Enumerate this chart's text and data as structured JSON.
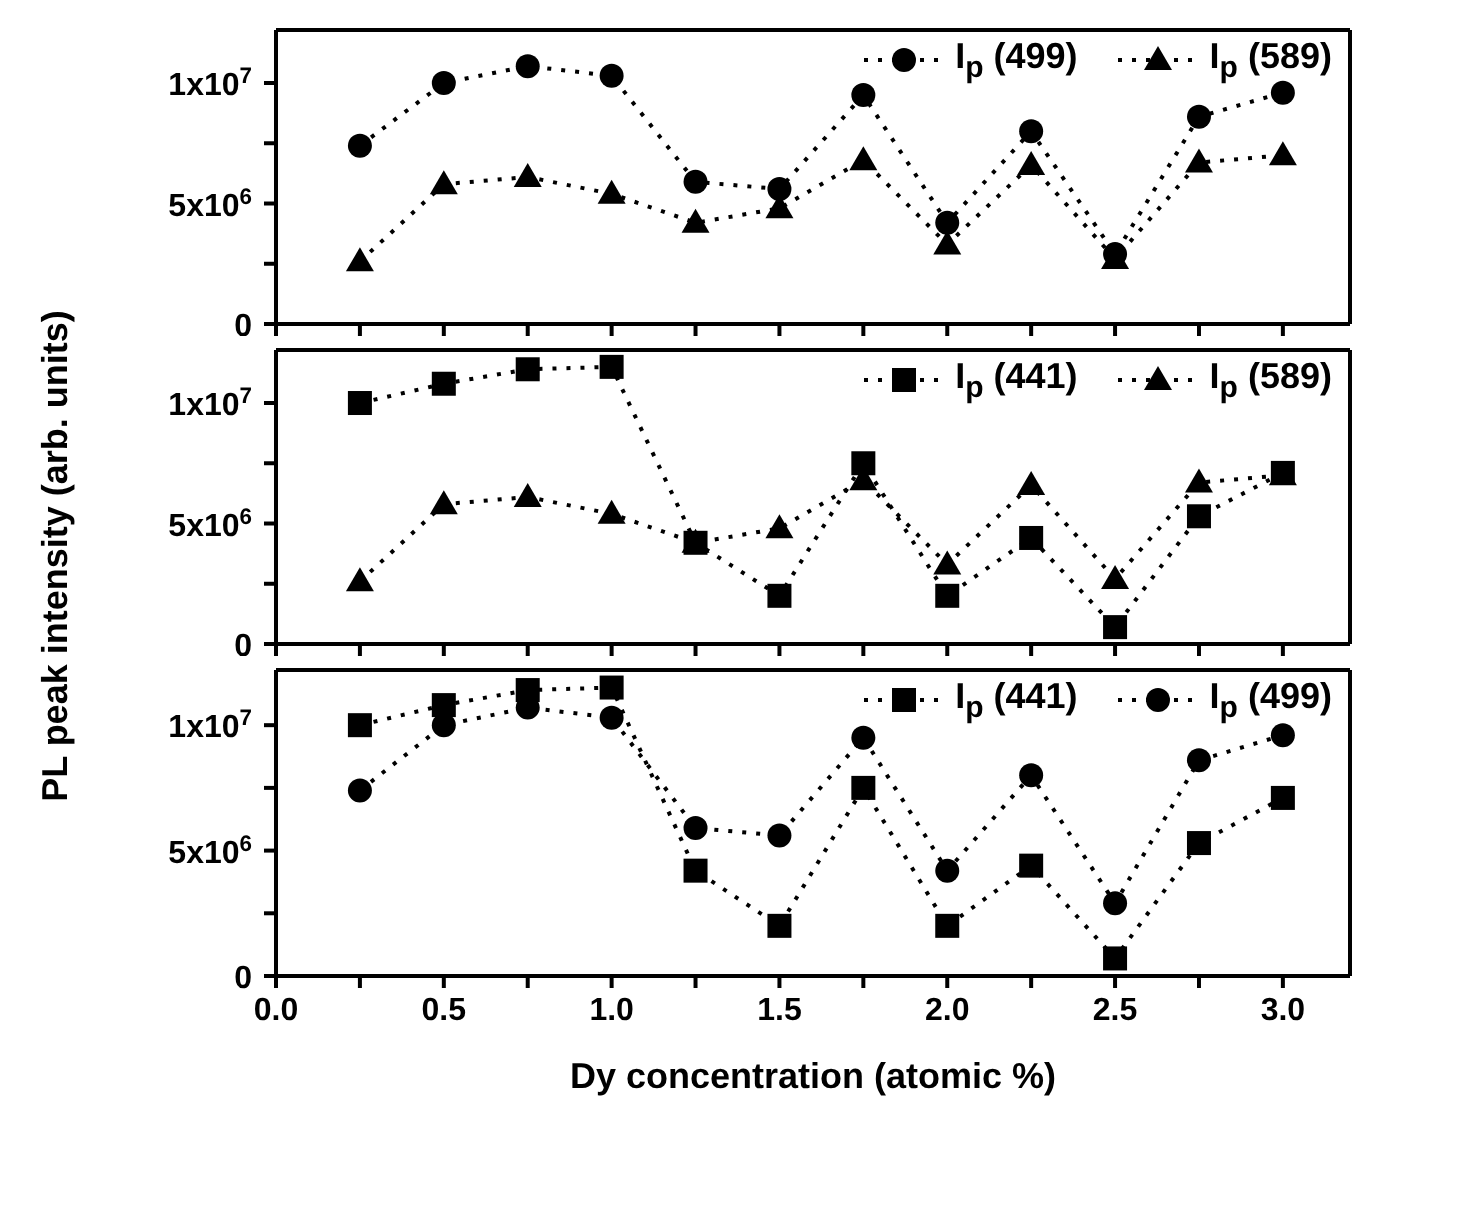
{
  "chart_data": [
    {
      "type": "line",
      "x": [
        0.25,
        0.5,
        0.75,
        1.0,
        1.25,
        1.5,
        1.75,
        2.0,
        2.25,
        2.5,
        2.75,
        3.0
      ],
      "series": [
        {
          "name": "I$_{p}$ (499)",
          "color": "#000000",
          "marker": "circle",
          "values": [
            7400000,
            10000000,
            10700000,
            10300000,
            5900000,
            5600000,
            9500000,
            4200000,
            8000000,
            2900000,
            8600000,
            9600000
          ]
        },
        {
          "name": "I$_{p}$ (589)",
          "color": "#000000",
          "marker": "triangle",
          "values": [
            2600000,
            5800000,
            6100000,
            5400000,
            4200000,
            4800000,
            6800000,
            3300000,
            6600000,
            2700000,
            6700000,
            7000000
          ]
        }
      ],
      "xlim": [
        0,
        3.2
      ],
      "ylim": [
        0,
        12200000
      ],
      "xticks": [
        0,
        0.5,
        1,
        1.5,
        2,
        2.5,
        3,
        {
          "value": 0.25,
          "label": null
        },
        {
          "value": 0.75,
          "label": null
        },
        {
          "value": 1.25,
          "label": null
        },
        {
          "value": 1.75,
          "label": null
        },
        {
          "value": 2.25,
          "label": null
        },
        {
          "value": 2.75,
          "label": null
        }
      ],
      "yticks": [
        {
          "value": 0,
          "label": "0"
        },
        {
          "value": 5000000,
          "label": "5x10$^{6}$"
        },
        {
          "value": 10000000,
          "label": "1x10$^{7}$"
        },
        {
          "value": 2500000,
          "label": null
        },
        {
          "value": 7500000,
          "label": null
        }
      ],
      "tick_labels": "y",
      "grid": false,
      "legend": "top right",
      "line_style": "dotted"
    },
    {
      "type": "line",
      "x": [
        0.25,
        0.5,
        0.75,
        1.0,
        1.25,
        1.5,
        1.75,
        2.0,
        2.25,
        2.5,
        2.75,
        3.0
      ],
      "ylabel": "PL peak intensity (arb. units)",
      "series": [
        {
          "name": "I$_{p}$ (441)",
          "color": "#000000",
          "marker": "square",
          "values": [
            10000000,
            10800000,
            11400000,
            11500000,
            4200000,
            2000000,
            7500000,
            2000000,
            4400000,
            700000,
            5300000,
            7100000
          ]
        },
        {
          "name": "I$_{p}$ (589)",
          "color": "#000000",
          "marker": "triangle",
          "values": [
            2600000,
            5800000,
            6100000,
            5400000,
            4200000,
            4800000,
            6800000,
            3300000,
            6600000,
            2700000,
            6700000,
            7000000
          ]
        }
      ],
      "xlim": [
        0,
        3.2
      ],
      "ylim": [
        0,
        12200000
      ],
      "xticks": [
        0,
        0.5,
        1,
        1.5,
        2,
        2.5,
        3,
        {
          "value": 0.25,
          "label": null
        },
        {
          "value": 0.75,
          "label": null
        },
        {
          "value": 1.25,
          "label": null
        },
        {
          "value": 1.75,
          "label": null
        },
        {
          "value": 2.25,
          "label": null
        },
        {
          "value": 2.75,
          "label": null
        }
      ],
      "yticks": [
        {
          "value": 0,
          "label": "0"
        },
        {
          "value": 5000000,
          "label": "5x10$^{6}$"
        },
        {
          "value": 10000000,
          "label": "1x10$^{7}$"
        },
        {
          "value": 2500000,
          "label": null
        },
        {
          "value": 7500000,
          "label": null
        }
      ],
      "tick_labels": "y",
      "grid": false,
      "legend": "top right",
      "line_style": "dotted"
    },
    {
      "type": "line",
      "x": [
        0.25,
        0.5,
        0.75,
        1.0,
        1.25,
        1.5,
        1.75,
        2.0,
        2.25,
        2.5,
        2.75,
        3.0
      ],
      "xlabel": "Dy concentration (atomic %)",
      "xticks": [
        {
          "value": 0,
          "label": "0.0"
        },
        {
          "value": 0.5,
          "label": "0.5"
        },
        {
          "value": 1,
          "label": "1.0"
        },
        {
          "value": 1.5,
          "label": "1.5"
        },
        {
          "value": 2,
          "label": "2.0"
        },
        {
          "value": 2.5,
          "label": "2.5"
        },
        {
          "value": 3,
          "label": "3.0"
        },
        {
          "value": 0.25,
          "label": null
        },
        {
          "value": 0.75,
          "label": null
        },
        {
          "value": 1.25,
          "label": null
        },
        {
          "value": 1.75,
          "label": null
        },
        {
          "value": 2.25,
          "label": null
        },
        {
          "value": 2.75,
          "label": null
        }
      ],
      "series": [
        {
          "name": "I$_{p}$ (441)",
          "color": "#000000",
          "marker": "square",
          "values": [
            10000000,
            10800000,
            11400000,
            11500000,
            4200000,
            2000000,
            7500000,
            2000000,
            4400000,
            700000,
            5300000,
            7100000
          ]
        },
        {
          "name": "I$_{p}$ (499)",
          "color": "#000000",
          "marker": "circle",
          "values": [
            7400000,
            10000000,
            10700000,
            10300000,
            5900000,
            5600000,
            9500000,
            4200000,
            8000000,
            2900000,
            8600000,
            9600000
          ]
        }
      ],
      "xlim": [
        0,
        3.2
      ],
      "ylim": [
        0,
        12200000
      ],
      "yticks": [
        {
          "value": 0,
          "label": "0"
        },
        {
          "value": 5000000,
          "label": "5x10$^{6}$"
        },
        {
          "value": 10000000,
          "label": "1x10$^{7}$"
        },
        {
          "value": 2500000,
          "label": null
        },
        {
          "value": 7500000,
          "label": null
        }
      ],
      "grid": false,
      "legend": "top right",
      "line_style": "dotted"
    }
  ]
}
